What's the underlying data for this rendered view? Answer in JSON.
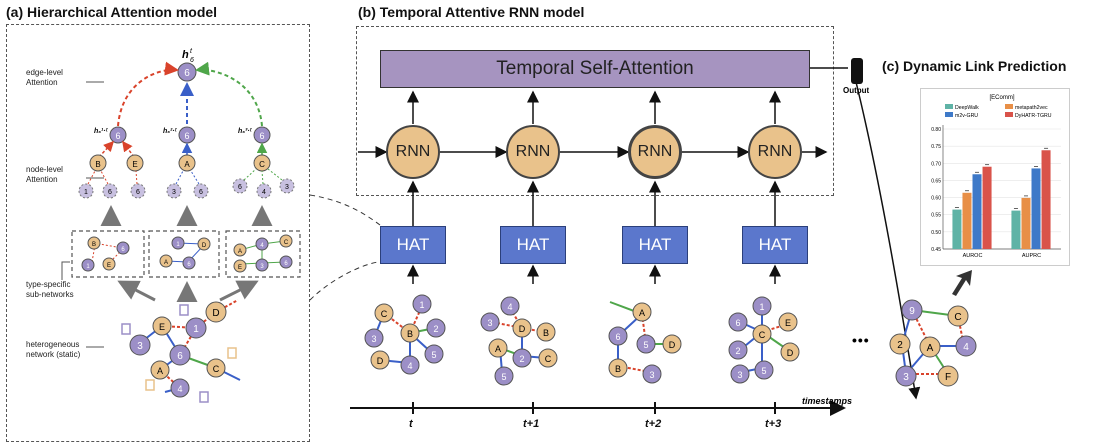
{
  "panels": {
    "a_title": "(a) Hierarchical Attention model",
    "b_title": "(b) Temporal Attentive RNN model",
    "c_title": "(c) Dynamic Link Prediction"
  },
  "panel_a": {
    "edge_level": [
      "edge-level",
      "Attention"
    ],
    "node_level": [
      "node-level",
      "Attention"
    ],
    "type_specific": [
      "type-specific",
      "sub-networks"
    ],
    "heterogeneous": [
      "heterogeneous",
      "network (static)"
    ],
    "top_embedding": "h",
    "top_sup": "t",
    "top_sub": "6",
    "mid_emb_1": "h₆¹·ᵗ",
    "mid_emb_2": "h₆²·ᵗ",
    "mid_emb_3": "h₆³·ᵗ"
  },
  "panel_b": {
    "tsa_label": "Temporal Self-Attention",
    "rnn_label": "RNN",
    "hat_label": "HAT",
    "output_label": "Output",
    "timestamps_label": "timestamps",
    "time_ticks": [
      "t",
      "t+1",
      "t+2",
      "t+3"
    ],
    "ellipsis": "•••"
  },
  "colors": {
    "purple_node": "#9c8fc7",
    "orange_node": "#e9c28b",
    "green_node": "#a5cf8a",
    "hat_blue": "#5b77cc",
    "tsa_purple": "#a694c0",
    "edge_red": "#d9432b",
    "edge_blue": "#3a5fc8",
    "edge_green": "#4fa64a"
  },
  "chart_data": {
    "type": "bar",
    "title": "[EComm]",
    "categories": [
      "AUROC",
      "AUPRC"
    ],
    "series": [
      {
        "name": "DeepWalk",
        "values": [
          0.565,
          0.562
        ],
        "color": "#5fb3a6"
      },
      {
        "name": "metapath2vec",
        "values": [
          0.614,
          0.599
        ],
        "color": "#e88f47"
      },
      {
        "name": "m2v-GRU",
        "values": [
          0.668,
          0.685
        ],
        "color": "#3e79c8"
      },
      {
        "name": "DyHATR-TGRU",
        "values": [
          0.69,
          0.738
        ],
        "color": "#d9534a"
      }
    ],
    "ylim": [
      0.45,
      0.8
    ],
    "yticks": [
      "0.45",
      "0.50",
      "0.55",
      "0.60",
      "0.65",
      "0.70",
      "0.75",
      "0.80"
    ],
    "grid": true,
    "legend": "top"
  }
}
